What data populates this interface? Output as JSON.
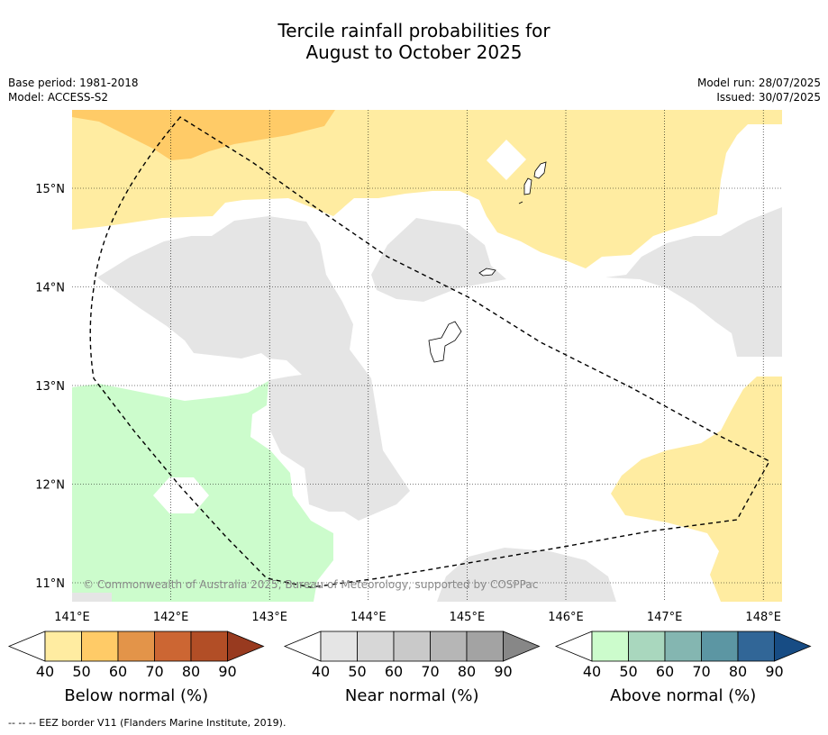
{
  "title_line1": "Tercile rainfall probabilities for",
  "title_line2": "August to October 2025",
  "meta_left": {
    "base_period": "Base period: 1981-2018",
    "model": "Model: ACCESS-S2"
  },
  "meta_right": {
    "model_run": "Model run: 28/07/2025",
    "issued": "Issued: 30/07/2025"
  },
  "map": {
    "lon_labels": [
      "141°E",
      "142°E",
      "143°E",
      "144°E",
      "145°E",
      "146°E",
      "147°E",
      "148°E"
    ],
    "lat_labels": [
      "15°N",
      "14°N",
      "13°N",
      "12°N",
      "11°N"
    ],
    "copyright": "© Commonwealth of Australia 2025, Bureau of Meteorology, supported by COSPPac"
  },
  "legends": [
    {
      "label": "Below normal (%)",
      "ticks": [
        "40",
        "50",
        "60",
        "70",
        "80",
        "90"
      ],
      "colors": [
        "#ffffff",
        "#ffeca1",
        "#ffcb67",
        "#e39449",
        "#cc6633",
        "#b24e26",
        "#983a1f"
      ]
    },
    {
      "label": "Near normal (%)",
      "ticks": [
        "40",
        "50",
        "60",
        "70",
        "80",
        "90"
      ],
      "colors": [
        "#ffffff",
        "#e5e5e5",
        "#d7d7d7",
        "#c9c9c9",
        "#b6b6b6",
        "#a3a3a3",
        "#878787"
      ]
    },
    {
      "label": "Above normal (%)",
      "ticks": [
        "40",
        "50",
        "60",
        "70",
        "80",
        "90"
      ],
      "colors": [
        "#ffffff",
        "#ccfccc",
        "#a9d7be",
        "#84b6b1",
        "#5c96a3",
        "#316697",
        "#174c84"
      ]
    }
  ],
  "footnote": "--  --  -- EEZ border V11 (Flanders Marine Institute, 2019)."
}
